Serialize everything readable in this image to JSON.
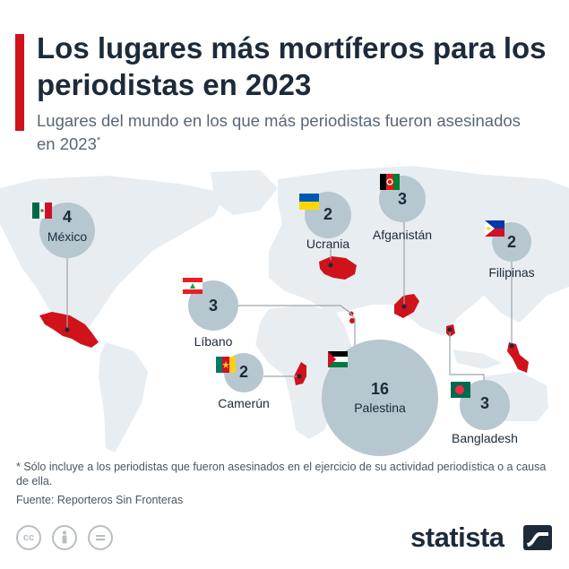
{
  "title": "Los lugares más mortíferos para los periodistas en 2023",
  "subtitle": "Lugares del mundo en los que más periodistas fueron asesinados en 2023",
  "subtitle_mark": "*",
  "countries": [
    {
      "name": "México",
      "value": "4",
      "flag": "mexico-flag"
    },
    {
      "name": "Ucrania",
      "value": "2",
      "flag": "ukraine-flag"
    },
    {
      "name": "Afganistán",
      "value": "3",
      "flag": "afghanistan-flag"
    },
    {
      "name": "Filipinas",
      "value": "2",
      "flag": "philippines-flag"
    },
    {
      "name": "Líbano",
      "value": "3",
      "flag": "lebanon-flag"
    },
    {
      "name": "Camerún",
      "value": "2",
      "flag": "cameroon-flag"
    },
    {
      "name": "Palestina",
      "value": "16",
      "flag": "palestine-flag"
    },
    {
      "name": "Bangladesh",
      "value": "3",
      "flag": "bangladesh-flag"
    }
  ],
  "note": "* Sólo incluye a los periodistas que fueron asesinados en el ejercicio de su actividad periodística o a causa de ella.",
  "source": "Fuente: Reporteros Sin Fronteras",
  "license_icons": [
    "cc-icon",
    "by-icon",
    "nd-icon"
  ],
  "brand": "statista",
  "colors": {
    "accent": "#d0121b",
    "bubble": "#b6c7d0",
    "country": "#d0121b",
    "land": "#e8edf1",
    "text": "#1c2a3a"
  }
}
